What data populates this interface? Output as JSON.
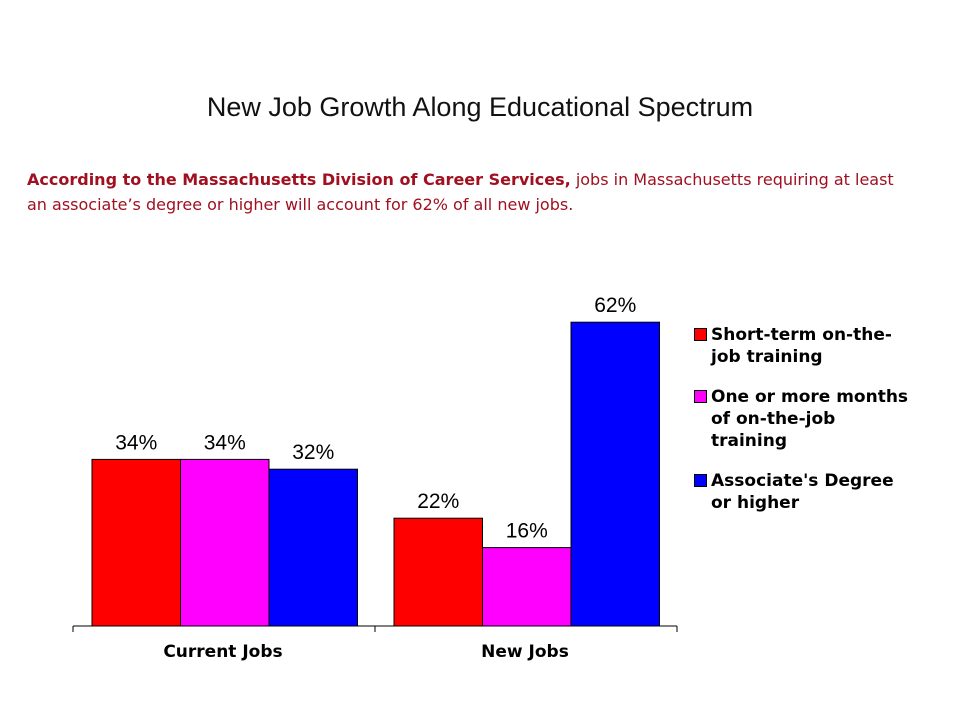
{
  "title": "New Job Growth Along Educational Spectrum",
  "subtitle": {
    "bold": "According to the Massachusetts Division of Career Services,",
    "rest": " jobs in Massachusetts requiring at least an associate’s degree or higher will account for 62% of all new jobs."
  },
  "colors": {
    "short_term": "#ff0000",
    "months": "#ff00ff",
    "associate": "#0000ff",
    "subtitle_text": "#a01020"
  },
  "chart_data": {
    "type": "bar",
    "categories": [
      "Current Jobs",
      "New Jobs"
    ],
    "series": [
      {
        "name": "Short-term on-the-job training",
        "values": [
          34,
          22
        ],
        "labels": [
          "34%",
          "22%"
        ]
      },
      {
        "name": "One or more months of on-the-job training",
        "values": [
          34,
          16
        ],
        "labels": [
          "34%",
          "16%"
        ]
      },
      {
        "name": "Associate's Degree or higher",
        "values": [
          32,
          62
        ],
        "labels": [
          "32%",
          "62%"
        ]
      }
    ],
    "title": "",
    "xlabel": "",
    "ylabel": "",
    "ylim": [
      0,
      70
    ],
    "grid": false,
    "legend_position": "right"
  },
  "legend": [
    {
      "label": "Short-term on-the-\njob training"
    },
    {
      "label": "One or more months\nof on-the-job\ntraining"
    },
    {
      "label": "Associate's Degree\nor higher"
    }
  ]
}
